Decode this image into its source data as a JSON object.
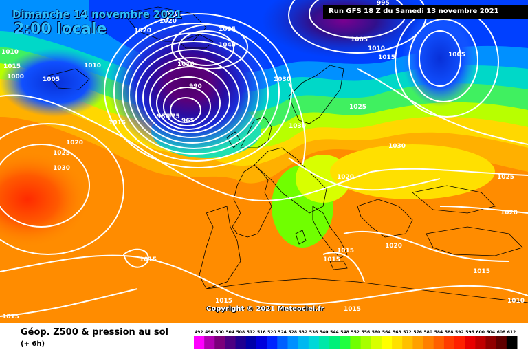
{
  "header": {
    "date_label": "Dimanche 14 novembre 2021",
    "time_label": "2:00 locale",
    "run_label": "Run GFS 18 Z du Samedi 13 novembre 2021"
  },
  "map": {
    "copyright": "Copyright © 2021 Meteociel.fr",
    "pressure_labels": [
      {
        "text": "1020"
      },
      {
        "text": "1020"
      },
      {
        "text": "1020"
      },
      {
        "text": "1010"
      },
      {
        "text": "1005"
      },
      {
        "text": "1000"
      },
      {
        "text": "1010"
      },
      {
        "text": "1015"
      },
      {
        "text": "1020"
      },
      {
        "text": "1025"
      },
      {
        "text": "1030"
      },
      {
        "text": "1015"
      },
      {
        "text": "1035"
      },
      {
        "text": "1040"
      },
      {
        "text": "1010"
      },
      {
        "text": "985"
      },
      {
        "text": "975"
      },
      {
        "text": "965"
      },
      {
        "text": "990"
      },
      {
        "text": "1030"
      },
      {
        "text": "1030"
      },
      {
        "text": "1005"
      },
      {
        "text": "995"
      },
      {
        "text": "1010"
      },
      {
        "text": "1015"
      },
      {
        "text": "1005"
      },
      {
        "text": "1025"
      },
      {
        "text": "1030"
      },
      {
        "text": "1020"
      },
      {
        "text": "1025"
      },
      {
        "text": "1020"
      },
      {
        "text": "1020"
      },
      {
        "text": "1015"
      },
      {
        "text": "1015"
      },
      {
        "text": "1015"
      },
      {
        "text": "1015"
      },
      {
        "text": "1015"
      },
      {
        "text": "1010"
      },
      {
        "text": "1015"
      },
      {
        "text": "1015"
      }
    ]
  },
  "legend": {
    "title": "Géop. Z500 & pression au sol",
    "step": "(+ 6h)",
    "ticks": [
      "492",
      "496",
      "500",
      "504",
      "508",
      "512",
      "516",
      "520",
      "524",
      "528",
      "532",
      "536",
      "540",
      "544",
      "548",
      "552",
      "556",
      "560",
      "564",
      "568",
      "572",
      "576",
      "580",
      "584",
      "588",
      "592",
      "596",
      "600",
      "604",
      "608",
      "612"
    ],
    "colors": [
      "#ff00ff",
      "#b000b0",
      "#7b007b",
      "#4b0082",
      "#1f0090",
      "#0000a8",
      "#0000dc",
      "#0024ff",
      "#0060ff",
      "#0090ff",
      "#00b8f0",
      "#00d8d8",
      "#00e8a8",
      "#00f07a",
      "#20ff40",
      "#70ff00",
      "#a8ff00",
      "#d8ff00",
      "#ffff00",
      "#ffe000",
      "#ffc000",
      "#ffa000",
      "#ff8000",
      "#ff6000",
      "#ff3c00",
      "#ff2000",
      "#e80000",
      "#c00000",
      "#900000",
      "#600000",
      "#000000"
    ]
  }
}
